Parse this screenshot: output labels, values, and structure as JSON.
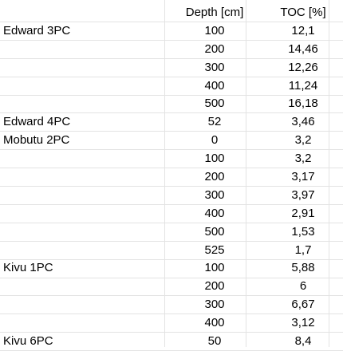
{
  "header": {
    "site": "",
    "depth": "Depth [cm]",
    "toc": "TOC [%]"
  },
  "rows": [
    {
      "site": "Edward 3PC",
      "depth": "100",
      "toc": "12,1"
    },
    {
      "site": "",
      "depth": "200",
      "toc": "14,46"
    },
    {
      "site": "",
      "depth": "300",
      "toc": "12,26"
    },
    {
      "site": "",
      "depth": "400",
      "toc": "11,24"
    },
    {
      "site": "",
      "depth": "500",
      "toc": "16,18"
    },
    {
      "site": "Edward 4PC",
      "depth": "52",
      "toc": "3,46"
    },
    {
      "site": "Mobutu 2PC",
      "depth": "0",
      "toc": "3,2"
    },
    {
      "site": "",
      "depth": "100",
      "toc": "3,2"
    },
    {
      "site": "",
      "depth": "200",
      "toc": "3,17"
    },
    {
      "site": "",
      "depth": "300",
      "toc": "3,97"
    },
    {
      "site": "",
      "depth": "400",
      "toc": "2,91"
    },
    {
      "site": "",
      "depth": "500",
      "toc": "1,53"
    },
    {
      "site": "",
      "depth": "525",
      "toc": "1,7"
    },
    {
      "site": "Kivu 1PC",
      "depth": "100",
      "toc": "5,88"
    },
    {
      "site": "",
      "depth": "200",
      "toc": "6"
    },
    {
      "site": "",
      "depth": "300",
      "toc": "6,67"
    },
    {
      "site": "",
      "depth": "400",
      "toc": "3,12"
    },
    {
      "site": "Kivu 6PC",
      "depth": "50",
      "toc": "8,4"
    }
  ]
}
